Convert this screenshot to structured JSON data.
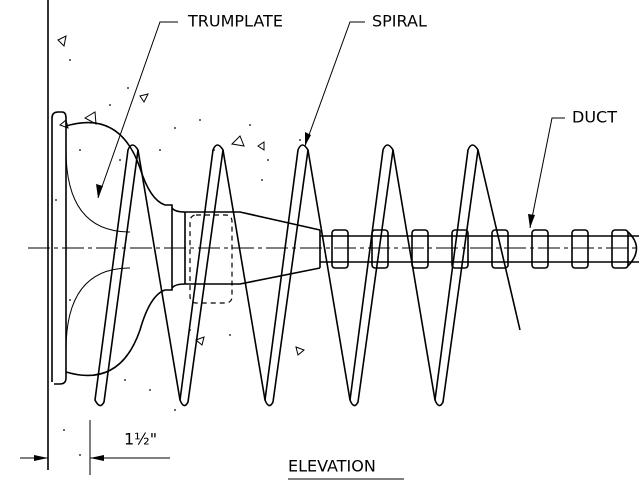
{
  "callouts": [
    {
      "label": "TRUMPLATE"
    },
    {
      "label": "SPIRAL"
    },
    {
      "label": "DUCT"
    }
  ],
  "dimension": {
    "label": "1½\""
  },
  "view_title": "ELEVATION"
}
